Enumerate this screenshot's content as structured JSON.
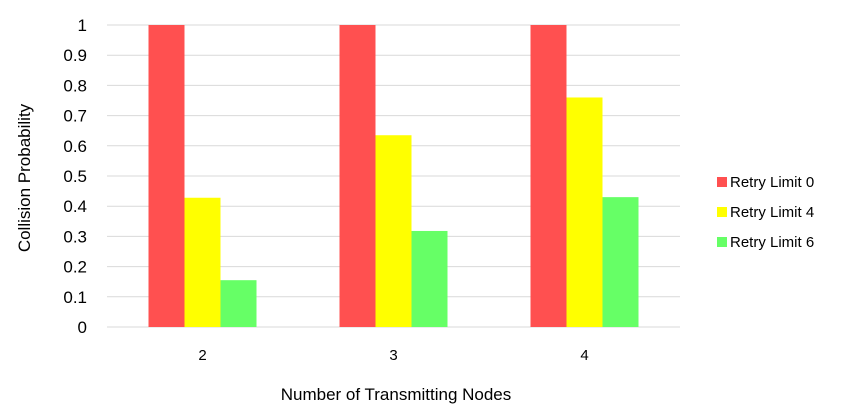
{
  "chart_data": {
    "type": "bar",
    "title": "",
    "xlabel": "Number of Transmitting Nodes",
    "ylabel": "Collision Probability",
    "categories": [
      "2",
      "3",
      "4"
    ],
    "ylim": [
      0,
      1
    ],
    "yticks": [
      "0",
      "0.1",
      "0.2",
      "0.3",
      "0.4",
      "0.5",
      "0.6",
      "0.7",
      "0.8",
      "0.9",
      "1"
    ],
    "grid": true,
    "legend_position": "right",
    "series": [
      {
        "name": "Retry Limit 0",
        "color": "#ff5050",
        "values": [
          1.0,
          1.0,
          1.0
        ]
      },
      {
        "name": "Retry Limit 4",
        "color": "#ffff00",
        "values": [
          0.428,
          0.635,
          0.76
        ]
      },
      {
        "name": "Retry Limit 6",
        "color": "#66ff66",
        "values": [
          0.155,
          0.318,
          0.43
        ]
      }
    ]
  }
}
